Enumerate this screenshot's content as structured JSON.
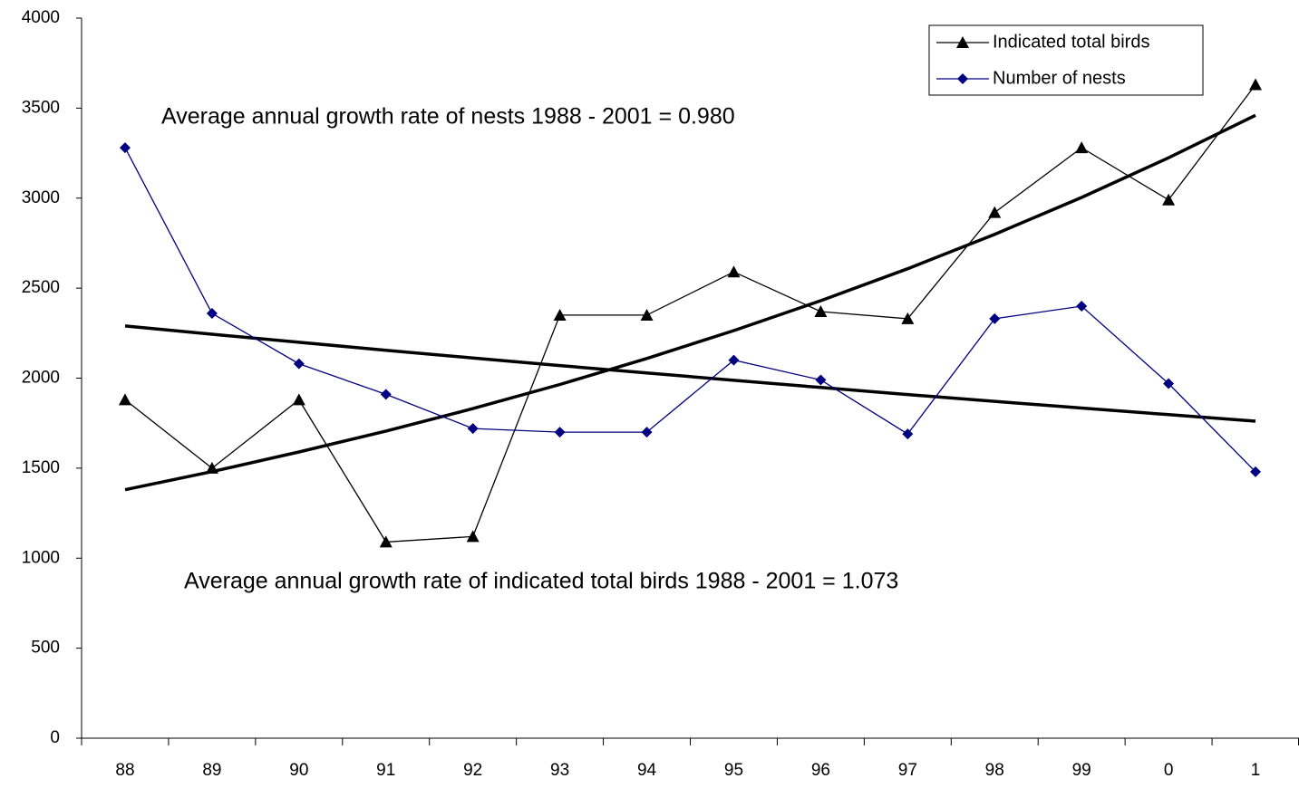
{
  "chart_data": {
    "type": "line",
    "categories": [
      "88",
      "89",
      "90",
      "91",
      "92",
      "93",
      "94",
      "95",
      "96",
      "97",
      "98",
      "99",
      "0",
      "1"
    ],
    "series": [
      {
        "name": "Indicated total birds",
        "color": "#000000",
        "marker": "triangle",
        "values": [
          1880,
          1500,
          1880,
          1090,
          1120,
          2350,
          2350,
          2590,
          2370,
          2330,
          2920,
          3280,
          2990,
          3630
        ]
      },
      {
        "name": "Number of nests",
        "color": "#000080",
        "marker": "diamond",
        "values": [
          3280,
          2360,
          2080,
          1910,
          1720,
          1700,
          1700,
          2100,
          1990,
          1690,
          2330,
          2400,
          1970,
          1480
        ]
      }
    ],
    "trendlines": [
      {
        "color": "#000000",
        "values": [
          1380,
          1481,
          1590,
          1706,
          1831,
          1965,
          2109,
          2264,
          2430,
          2608,
          2799,
          3004,
          3224,
          3460
        ]
      },
      {
        "color": "#000000",
        "values": [
          2290,
          2244,
          2199,
          2155,
          2112,
          2070,
          2029,
          1988,
          1948,
          1909,
          1871,
          1834,
          1797,
          1761
        ]
      }
    ],
    "annotations": [
      "Average annual growth rate of nests 1988 - 2001 = 0.980",
      "Average annual growth rate of indicated total birds 1988 - 2001 = 1.073"
    ],
    "ylim": [
      0,
      4000
    ],
    "yticks": [
      0,
      500,
      1000,
      1500,
      2000,
      2500,
      3000,
      3500,
      4000
    ],
    "grid": false,
    "legend": "upper right"
  }
}
